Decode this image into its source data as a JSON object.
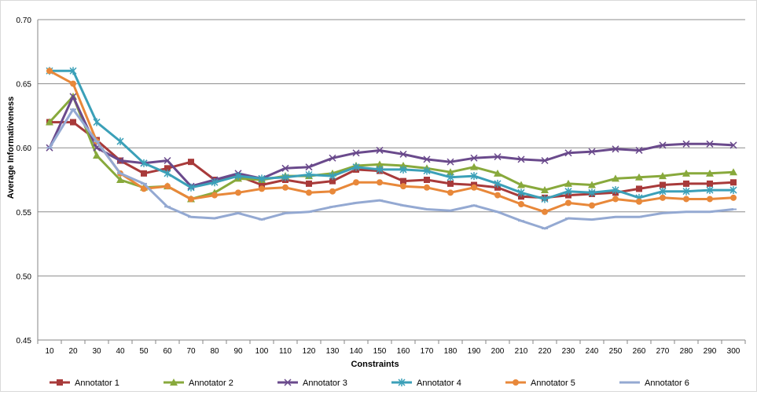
{
  "chart_data": {
    "type": "line",
    "title": "",
    "xlabel": "Constraints",
    "ylabel": "Average Informativeness",
    "ylim": [
      0.45,
      0.7
    ],
    "yticks": [
      "0.45",
      "0.50",
      "0.55",
      "0.60",
      "0.65",
      "0.70"
    ],
    "grid": "horizontal",
    "legend_position": "bottom",
    "x": [
      10,
      20,
      30,
      40,
      50,
      60,
      70,
      80,
      90,
      100,
      110,
      120,
      130,
      140,
      150,
      160,
      170,
      180,
      190,
      200,
      210,
      220,
      230,
      240,
      250,
      260,
      270,
      280,
      290,
      300
    ],
    "series": [
      {
        "name": "Annotator 1",
        "color": "#a83a3a",
        "marker": "square",
        "values": [
          0.62,
          0.62,
          0.606,
          0.59,
          0.58,
          0.584,
          0.589,
          0.575,
          0.578,
          0.571,
          0.575,
          0.572,
          0.574,
          0.583,
          0.582,
          0.574,
          0.575,
          0.572,
          0.571,
          0.569,
          0.562,
          0.561,
          0.563,
          0.564,
          0.565,
          0.568,
          0.571,
          0.572,
          0.572,
          0.573
        ]
      },
      {
        "name": "Annotator 2",
        "color": "#88a93c",
        "marker": "triangle",
        "values": [
          0.62,
          0.64,
          0.594,
          0.575,
          0.569,
          0.57,
          0.56,
          0.565,
          0.576,
          0.575,
          0.578,
          0.578,
          0.58,
          0.586,
          0.587,
          0.586,
          0.584,
          0.581,
          0.585,
          0.58,
          0.571,
          0.567,
          0.572,
          0.571,
          0.576,
          0.577,
          0.578,
          0.58,
          0.58,
          0.581
        ]
      },
      {
        "name": "Annotator 3",
        "color": "#6a4a8c",
        "marker": "x",
        "values": [
          0.6,
          0.64,
          0.6,
          0.59,
          0.588,
          0.59,
          0.57,
          0.575,
          0.58,
          0.576,
          0.584,
          0.585,
          0.592,
          0.596,
          0.598,
          0.595,
          0.591,
          0.589,
          0.592,
          0.593,
          0.591,
          0.59,
          0.596,
          0.597,
          0.599,
          0.598,
          0.602,
          0.603,
          0.603,
          0.602
        ]
      },
      {
        "name": "Annotator 4",
        "color": "#3ba0b8",
        "marker": "star",
        "values": [
          0.66,
          0.66,
          0.62,
          0.605,
          0.588,
          0.58,
          0.569,
          0.573,
          0.578,
          0.576,
          0.577,
          0.579,
          0.578,
          0.585,
          0.583,
          0.583,
          0.582,
          0.577,
          0.578,
          0.572,
          0.565,
          0.56,
          0.566,
          0.565,
          0.567,
          0.561,
          0.566,
          0.566,
          0.567,
          0.567
        ]
      },
      {
        "name": "Annotator 5",
        "color": "#e8883a",
        "marker": "circle",
        "values": [
          0.66,
          0.65,
          0.605,
          0.58,
          0.568,
          0.57,
          0.56,
          0.563,
          0.565,
          0.568,
          0.569,
          0.565,
          0.566,
          0.573,
          0.573,
          0.57,
          0.569,
          0.565,
          0.569,
          0.563,
          0.556,
          0.55,
          0.557,
          0.555,
          0.56,
          0.558,
          0.561,
          0.56,
          0.56,
          0.561
        ]
      },
      {
        "name": "Annotator 6",
        "color": "#94a9d2",
        "marker": "dash",
        "values": [
          0.6,
          0.63,
          0.605,
          0.58,
          0.572,
          0.554,
          0.546,
          0.545,
          0.549,
          0.544,
          0.549,
          0.55,
          0.554,
          0.557,
          0.559,
          0.555,
          0.552,
          0.551,
          0.555,
          0.55,
          0.543,
          0.537,
          0.545,
          0.544,
          0.546,
          0.546,
          0.549,
          0.55,
          0.55,
          0.552
        ]
      }
    ]
  }
}
